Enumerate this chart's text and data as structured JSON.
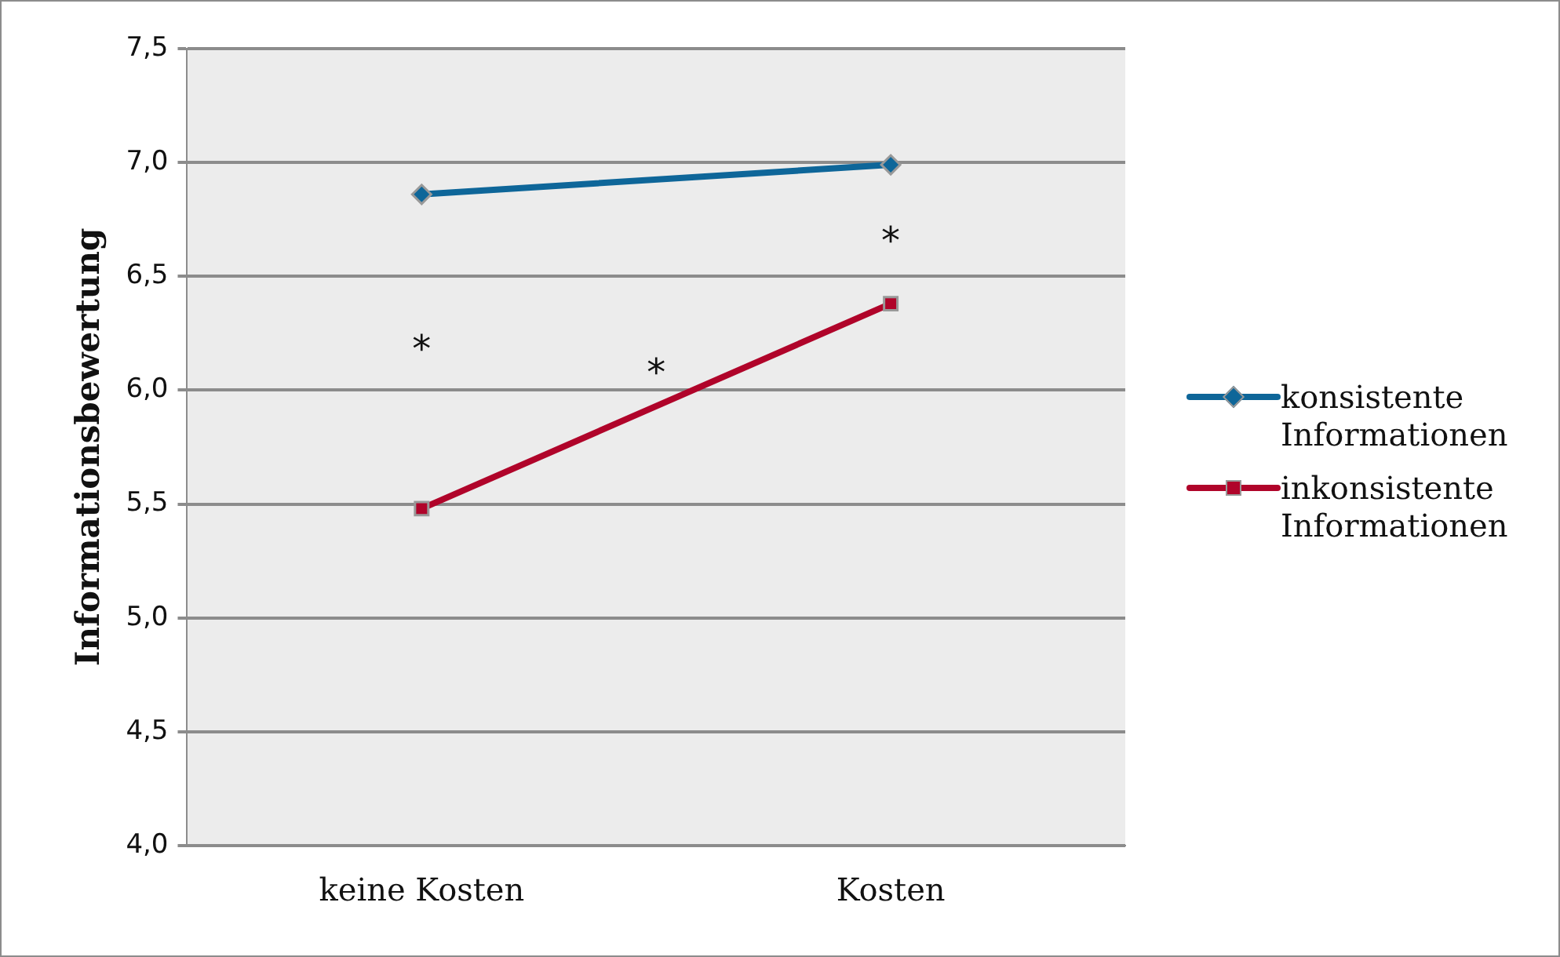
{
  "chart_data": {
    "type": "line",
    "ylabel": "Informationsbewertung",
    "categories": [
      "keine Kosten",
      "Kosten"
    ],
    "series": [
      {
        "name": "konsistente Informationen",
        "color": "#0e6699",
        "values": [
          6.86,
          6.99
        ],
        "marker": "diamond"
      },
      {
        "name": "inkonsistente Informationen",
        "color": "#b0042a",
        "values": [
          5.48,
          6.38
        ],
        "marker": "square"
      }
    ],
    "ylim": [
      4.0,
      7.5
    ],
    "yticks": [
      {
        "value": 4.0,
        "label": "4,0"
      },
      {
        "value": 4.5,
        "label": "4,5"
      },
      {
        "value": 5.0,
        "label": "5,0"
      },
      {
        "value": 5.5,
        "label": "5,5"
      },
      {
        "value": 6.0,
        "label": "6,0"
      },
      {
        "value": 6.5,
        "label": "6,5"
      },
      {
        "value": 7.0,
        "label": "7,0"
      },
      {
        "value": 7.5,
        "label": "7,5"
      }
    ],
    "grid": "y",
    "legend": "right",
    "line_style": "solid",
    "annotations": [
      "*",
      "*",
      "*"
    ]
  }
}
